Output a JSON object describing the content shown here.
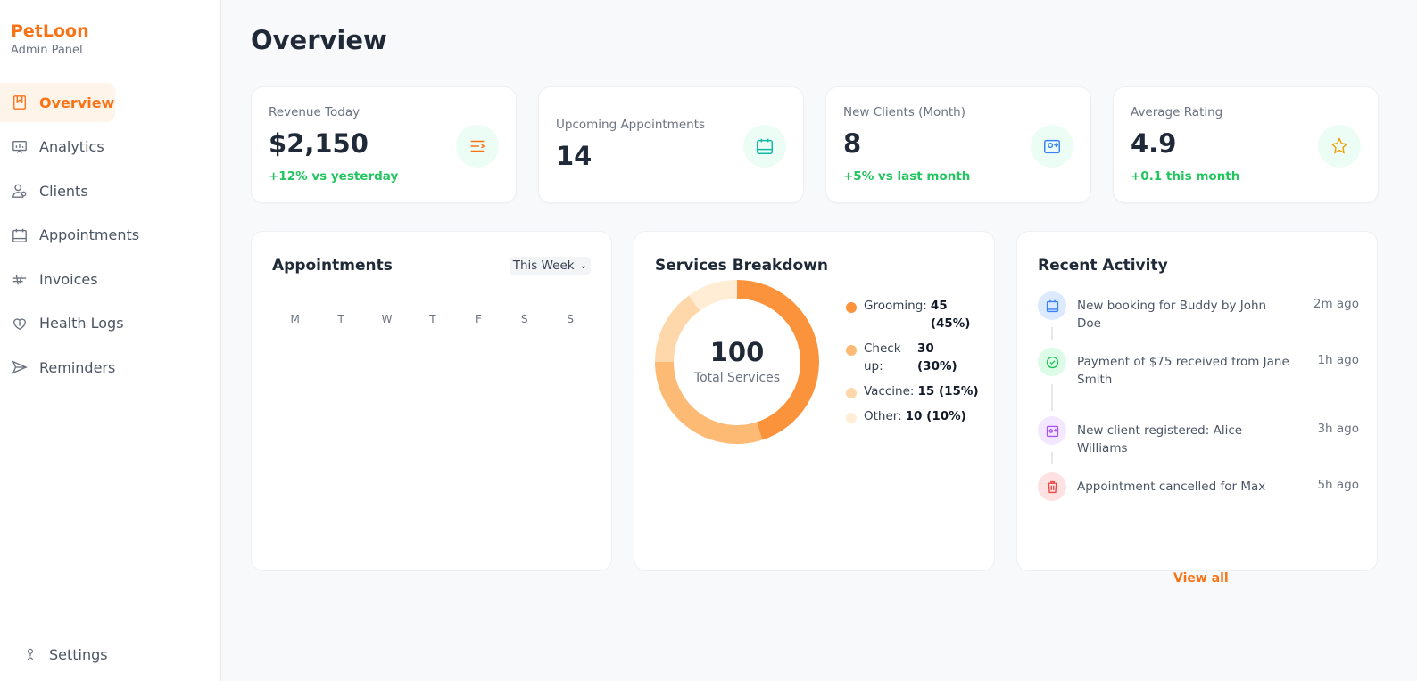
{
  "brand": {
    "name": "PetLoon",
    "subtitle": "Admin Panel"
  },
  "sidebar": {
    "items": [
      {
        "label": "Overview",
        "icon": "overview-icon",
        "active": true
      },
      {
        "label": "Analytics",
        "icon": "analytics-icon",
        "active": false
      },
      {
        "label": "Clients",
        "icon": "clients-icon",
        "active": false
      },
      {
        "label": "Appointments",
        "icon": "appointments-icon",
        "active": false
      },
      {
        "label": "Invoices",
        "icon": "invoices-icon",
        "active": false
      },
      {
        "label": "Health Logs",
        "icon": "health-logs-icon",
        "active": false
      },
      {
        "label": "Reminders",
        "icon": "reminders-icon",
        "active": false
      }
    ],
    "settings_label": "Settings"
  },
  "page": {
    "title": "Overview"
  },
  "stats": [
    {
      "label": "Revenue Today",
      "value": "$2,150",
      "delta": "+12% vs yesterday",
      "icon": "revenue-icon",
      "icon_color": "#f97316",
      "icon_bg": "#ecfdf5"
    },
    {
      "label": "Upcoming Appointments",
      "value": "14",
      "delta": "",
      "icon": "calendar-icon",
      "icon_color": "#14b8a6",
      "icon_bg": "#ecfdf5"
    },
    {
      "label": "New Clients (Month)",
      "value": "8",
      "delta": "+5% vs last month",
      "icon": "new-client-icon",
      "icon_color": "#3b82f6",
      "icon_bg": "#ecfdf5"
    },
    {
      "label": "Average Rating",
      "value": "4.9",
      "delta": "+0.1 this month",
      "icon": "star-icon",
      "icon_color": "#f59e0b",
      "icon_bg": "#ecfdf5"
    }
  ],
  "appointments_panel": {
    "title": "Appointments",
    "range_select": "This Week",
    "days": [
      "M",
      "T",
      "W",
      "T",
      "F",
      "S",
      "S"
    ]
  },
  "services_panel": {
    "title": "Services Breakdown",
    "total_value": "100",
    "total_label": "Total Services",
    "legend": [
      {
        "name": "Grooming:",
        "value": "45 (45%)"
      },
      {
        "name": "Check-up:",
        "value": "30 (30%)"
      },
      {
        "name": "Vaccine:",
        "value": "15 (15%)"
      },
      {
        "name": "Other:",
        "value": "10 (10%)"
      }
    ]
  },
  "chart_data": {
    "type": "pie",
    "categories": [
      "Grooming",
      "Check-up",
      "Vaccine",
      "Other"
    ],
    "values": [
      45,
      30,
      15,
      10
    ],
    "colors": [
      "#fb923c",
      "#fdba74",
      "#fed7aa",
      "#ffedd5"
    ],
    "title": "Services Breakdown"
  },
  "activity_panel": {
    "title": "Recent Activity",
    "items": [
      {
        "text": "New booking for Buddy by John Doe",
        "time": "2m ago",
        "icon": "calendar-icon",
        "color": "#3b82f6",
        "bg": "#dbeafe"
      },
      {
        "text": "Payment of $75 received from Jane Smith",
        "time": "1h ago",
        "icon": "check-circle-icon",
        "color": "#22c55e",
        "bg": "#dcfce7"
      },
      {
        "text": "New client registered: Alice Williams",
        "time": "3h ago",
        "icon": "new-client-icon",
        "color": "#a855f7",
        "bg": "#f3e8ff"
      },
      {
        "text": "Appointment cancelled for Max",
        "time": "5h ago",
        "icon": "trash-icon",
        "color": "#ef4444",
        "bg": "#fee2e2"
      }
    ],
    "view_all_label": "View all"
  }
}
